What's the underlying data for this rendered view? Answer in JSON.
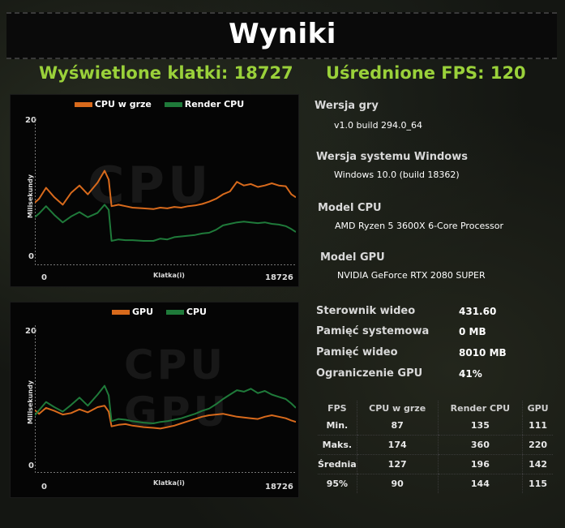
{
  "title": "Wyniki",
  "frames_label": "Wyświetlone klatki: 18727",
  "avg_fps_label": "Uśrednione FPS: 120",
  "charts": {
    "cpu": {
      "legend": [
        {
          "label": "CPU w grze",
          "color": "#d86a1c"
        },
        {
          "label": "Render CPU",
          "color": "#1f7a3a"
        }
      ],
      "watermark": "CPU",
      "ylabel": "Milisekundy",
      "xlabel": "Klatka(i)",
      "ytick_top": "20",
      "ytick_bottom": "0",
      "xtick_left": "0",
      "xtick_right": "18726"
    },
    "gpu": {
      "legend": [
        {
          "label": "GPU",
          "color": "#d86a1c"
        },
        {
          "label": "CPU",
          "color": "#1f7a3a"
        }
      ],
      "watermark_top": "CPU",
      "watermark_bottom": "GPU",
      "ylabel": "Milisekundy",
      "xlabel": "Klatka(i)",
      "ytick_top": "20",
      "ytick_bottom": "0",
      "xtick_left": "0",
      "xtick_right": "18726"
    }
  },
  "chart_data": [
    {
      "type": "line",
      "ylim": [
        0,
        20
      ],
      "xlim": [
        0,
        18726
      ],
      "series": [
        {
          "name": "CPU w grze",
          "color": "#d86a1c",
          "x": [
            0,
            300,
            800,
            1400,
            2000,
            2600,
            3200,
            3800,
            4500,
            5000,
            5300,
            5500,
            6000,
            6500,
            7000,
            7800,
            8500,
            9000,
            9500,
            10000,
            10500,
            11000,
            11500,
            12000,
            12500,
            13000,
            13500,
            14000,
            14500,
            15000,
            15500,
            16000,
            16500,
            17000,
            17500,
            18000,
            18400,
            18726
          ],
          "y": [
            8.5,
            9,
            10.5,
            9.2,
            8.2,
            9.8,
            10.8,
            9.6,
            11.2,
            12.8,
            11.6,
            8.0,
            8.2,
            8.0,
            7.8,
            7.7,
            7.6,
            7.8,
            7.7,
            7.9,
            7.8,
            8.0,
            8.1,
            8.3,
            8.6,
            9.0,
            9.6,
            10.0,
            11.3,
            10.8,
            11.0,
            10.6,
            10.8,
            11.1,
            10.8,
            10.7,
            9.6,
            9.2
          ]
        },
        {
          "name": "Render CPU",
          "color": "#1f7a3a",
          "x": [
            0,
            300,
            800,
            1400,
            2000,
            2600,
            3200,
            3800,
            4500,
            5000,
            5300,
            5500,
            6000,
            6500,
            7000,
            7800,
            8500,
            9000,
            9500,
            10000,
            10500,
            11000,
            11500,
            12000,
            12500,
            13000,
            13500,
            14000,
            14500,
            15000,
            15500,
            16000,
            16500,
            17000,
            17500,
            18000,
            18400,
            18726
          ],
          "y": [
            6.5,
            7.0,
            8.0,
            6.8,
            5.8,
            6.6,
            7.2,
            6.5,
            7.1,
            8.2,
            7.5,
            3.3,
            3.5,
            3.4,
            3.4,
            3.3,
            3.3,
            3.6,
            3.5,
            3.8,
            3.9,
            4.0,
            4.1,
            4.3,
            4.4,
            4.8,
            5.4,
            5.6,
            5.8,
            5.9,
            5.8,
            5.7,
            5.8,
            5.6,
            5.5,
            5.3,
            4.9,
            4.5
          ]
        }
      ]
    },
    {
      "type": "line",
      "ylim": [
        0,
        20
      ],
      "xlim": [
        0,
        18726
      ],
      "series": [
        {
          "name": "GPU",
          "color": "#d86a1c",
          "x": [
            0,
            300,
            800,
            1400,
            2000,
            2600,
            3200,
            3800,
            4500,
            5000,
            5300,
            5500,
            6000,
            6500,
            7000,
            7800,
            8500,
            9000,
            9500,
            10000,
            10500,
            11000,
            11500,
            12000,
            12500,
            13000,
            13500,
            14000,
            14500,
            15000,
            15500,
            16000,
            16500,
            17000,
            17500,
            18000,
            18400,
            18726
          ],
          "y": [
            8.5,
            8.0,
            8.8,
            8.4,
            7.9,
            8.1,
            8.6,
            8.2,
            8.9,
            9.1,
            8.3,
            6.3,
            6.5,
            6.6,
            6.4,
            6.2,
            6.1,
            6.0,
            6.2,
            6.4,
            6.7,
            7.0,
            7.3,
            7.6,
            7.8,
            7.9,
            8.0,
            7.8,
            7.6,
            7.5,
            7.4,
            7.3,
            7.6,
            7.8,
            7.6,
            7.4,
            7.1,
            6.9
          ]
        },
        {
          "name": "CPU",
          "color": "#1f7a3a",
          "x": [
            0,
            300,
            800,
            1400,
            2000,
            2600,
            3200,
            3800,
            4500,
            5000,
            5300,
            5500,
            6000,
            6500,
            7000,
            7800,
            8500,
            9000,
            9500,
            10000,
            10500,
            11000,
            11500,
            12000,
            12500,
            13000,
            13500,
            14000,
            14500,
            15000,
            15500,
            16000,
            16500,
            17000,
            17500,
            18000,
            18400,
            18726
          ],
          "y": [
            7.8,
            8.5,
            9.6,
            8.9,
            8.3,
            9.2,
            10.2,
            9.1,
            10.6,
            11.8,
            10.5,
            7.0,
            7.3,
            7.2,
            7.0,
            6.8,
            6.7,
            6.9,
            7.0,
            7.2,
            7.4,
            7.7,
            8.0,
            8.4,
            8.7,
            9.3,
            10.0,
            10.6,
            11.2,
            11.0,
            11.4,
            10.8,
            11.1,
            10.6,
            10.3,
            10.0,
            9.4,
            8.8
          ]
        }
      ]
    }
  ],
  "info": [
    {
      "label": "Wersja gry",
      "value": "v1.0 build 294.0_64"
    },
    {
      "label": "Wersja systemu Windows",
      "value": "Windows 10.0 (build 18362)"
    },
    {
      "label": "Model CPU",
      "value": "AMD Ryzen 5 3600X 6-Core Processor"
    },
    {
      "label": "Model GPU",
      "value": "NVIDIA GeForce RTX 2080 SUPER"
    }
  ],
  "stats": [
    {
      "label": "Sterownik wideo",
      "value": "431.60"
    },
    {
      "label": "Pamięć systemowa",
      "value": "0 MB"
    },
    {
      "label": "Pamięć wideo",
      "value": "8010 MB"
    },
    {
      "label": "Ograniczenie GPU",
      "value": "41%"
    }
  ],
  "fps_table": {
    "headers": [
      "FPS",
      "CPU w grze",
      "Render CPU",
      "GPU"
    ],
    "rows": [
      [
        "Min.",
        "87",
        "135",
        "111"
      ],
      [
        "Maks.",
        "174",
        "360",
        "220"
      ],
      [
        "Średnia",
        "127",
        "196",
        "142"
      ],
      [
        "95%",
        "90",
        "144",
        "115"
      ]
    ]
  }
}
